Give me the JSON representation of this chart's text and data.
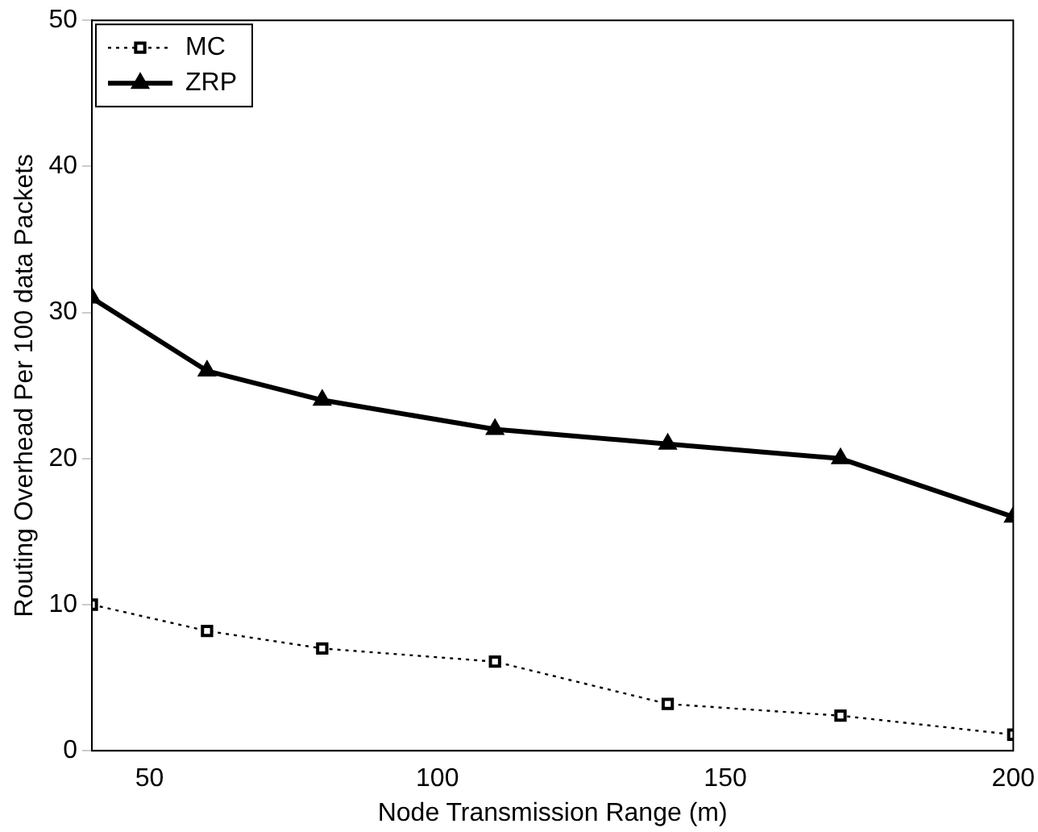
{
  "chart_data": {
    "type": "line",
    "xlabel": "Node Transmission Range (m)",
    "ylabel": "Routing Overhead Per 100 data Packets",
    "x": [
      40,
      60,
      80,
      110,
      140,
      170,
      200
    ],
    "series": [
      {
        "name": "MC",
        "color": "#000000",
        "values": [
          10,
          8.2,
          7,
          6.1,
          3.2,
          2.4,
          1.1
        ],
        "marker": "square",
        "line_style": "dotted"
      },
      {
        "name": "ZRP",
        "color": "#000000",
        "values": [
          31,
          26,
          24,
          22,
          21,
          20,
          16
        ],
        "marker": "triangle",
        "line_style": "solid"
      }
    ],
    "xlim": [
      40,
      200
    ],
    "xticks": [
      50,
      100,
      150,
      200
    ],
    "ylim": [
      0,
      50
    ],
    "yticks": [
      0,
      10,
      20,
      30,
      40,
      50
    ],
    "grid": false,
    "legend": "top left"
  }
}
